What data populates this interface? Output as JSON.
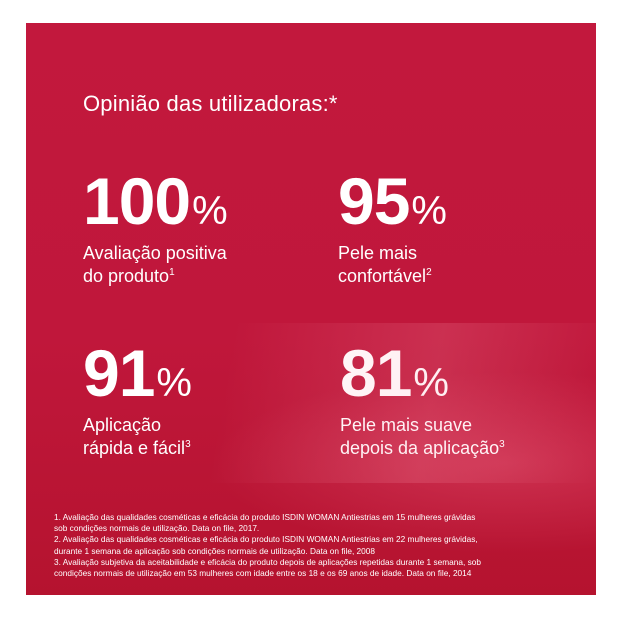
{
  "headline": "Opinião das utilizadoras:*",
  "stats": [
    {
      "value": "100",
      "unit": "%",
      "line1": "Avaliação positiva",
      "line2": "do produto",
      "ref": "1"
    },
    {
      "value": "95",
      "unit": "%",
      "line1": "Pele mais",
      "line2": "confortável",
      "ref": "2"
    },
    {
      "value": "91",
      "unit": "%",
      "line1": "Aplicação",
      "line2": "rápida e fácil",
      "ref": "3"
    },
    {
      "value": "81",
      "unit": "%",
      "line1": "Pele mais suave",
      "line2": "depois da aplicação",
      "ref": "3"
    }
  ],
  "footnotes": [
    "1. Avaliação das qualidades cosméticas e eficácia do produto ISDIN WOMAN Antiestrias em 15 mulheres grávidas",
    "sob condições normais de utilização. Data on file, 2017.",
    "2. Avaliação das qualidades cosméticas e eficácia do produto ISDIN WOMAN Antiestrias em 22 mulheres grávidas,",
    "durante 1 semana de aplicação sob condições normais de utilização. Data on file, 2008",
    "3. Avaliação subjetiva da aceitabilidade e eficácia do produto depois de aplicações repetidas durante 1 semana, sob",
    "condições normais de utilização em 53 mulheres com idade entre os 18 e os 69 anos de idade. Data on file, 2014"
  ],
  "colors": {
    "panel": "#c0173b",
    "text": "#ffffff",
    "background": "#ffffff"
  }
}
